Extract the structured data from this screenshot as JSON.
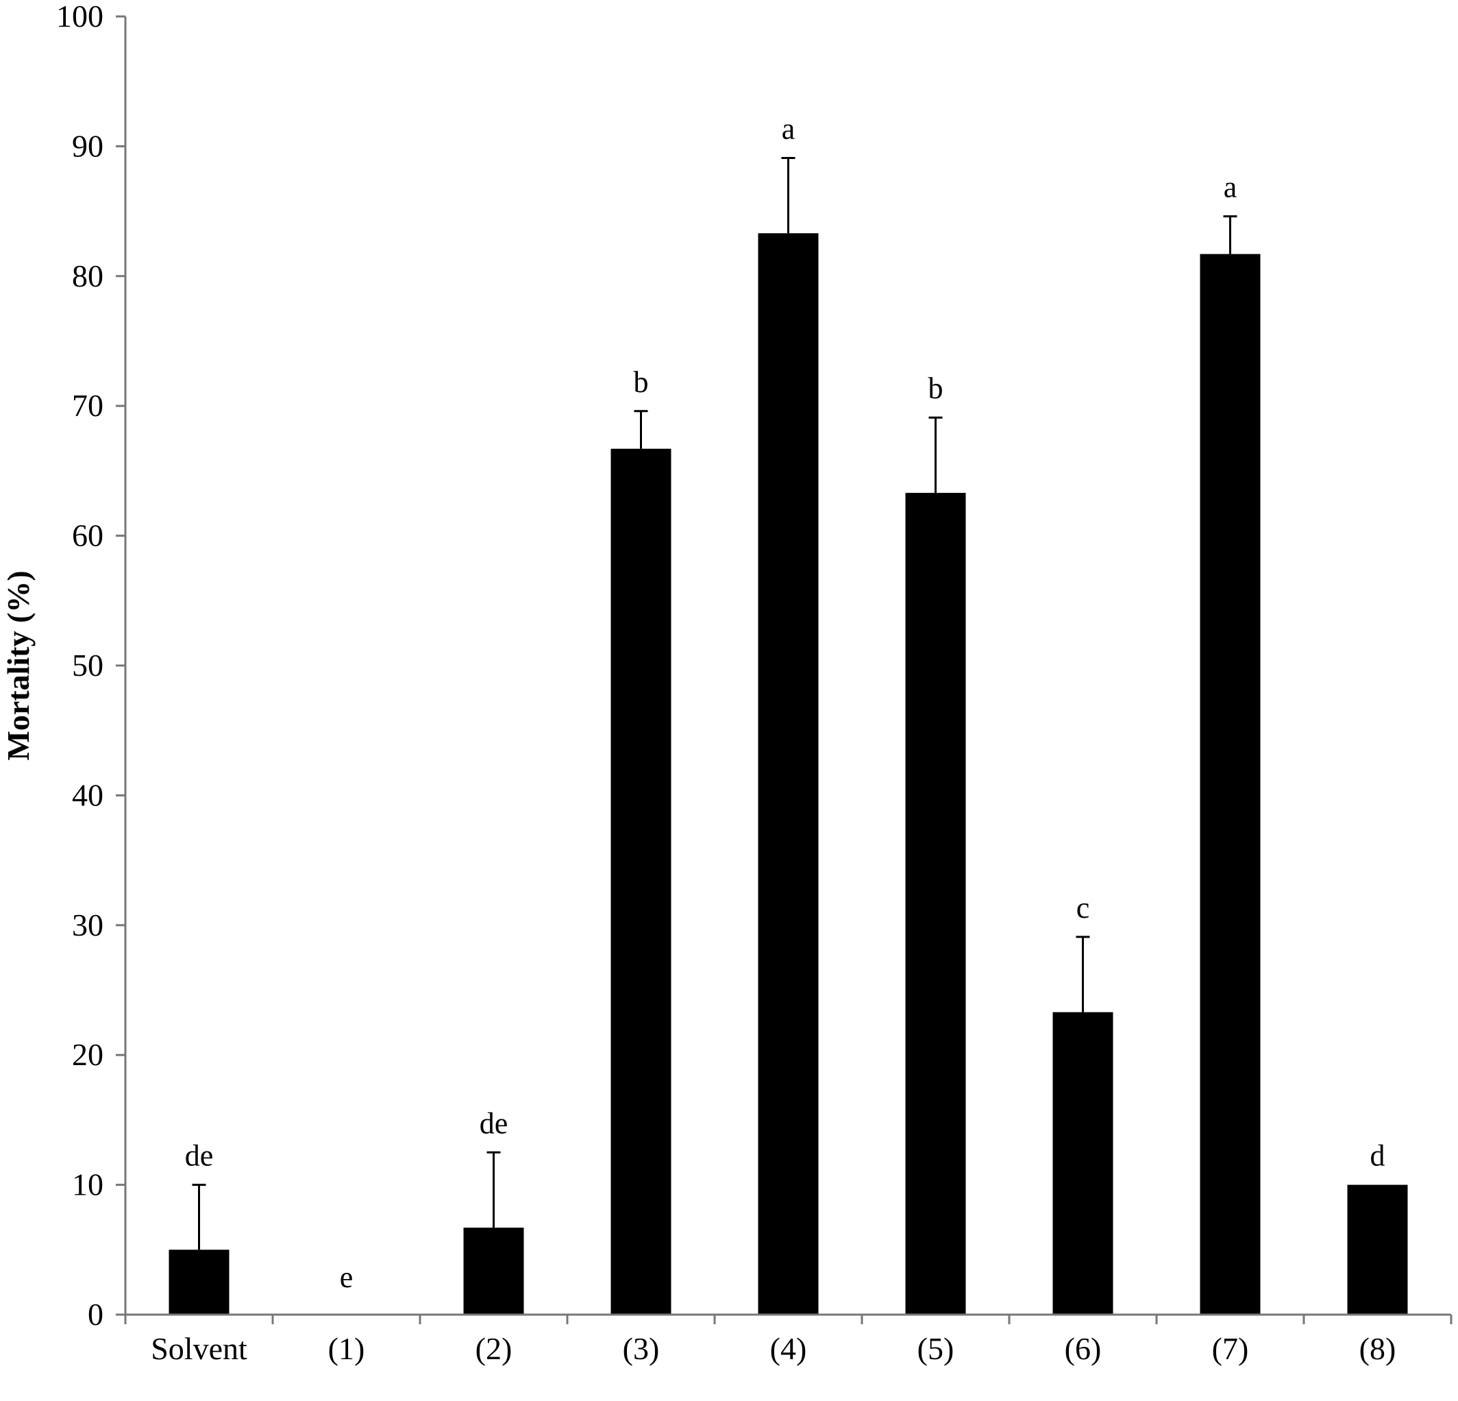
{
  "chart_data": {
    "type": "bar",
    "ylabel": "Mortality (%)",
    "xlabel": "",
    "ylim": [
      0,
      100
    ],
    "yticks": [
      0,
      10,
      20,
      30,
      40,
      50,
      60,
      70,
      80,
      90,
      100
    ],
    "grid": false,
    "legend": "none",
    "bar_color": "#000000",
    "categories": [
      "Solvent",
      "(1)",
      "(2)",
      "(3)",
      "(4)",
      "(5)",
      "(6)",
      "(7)",
      "(8)"
    ],
    "values": [
      5.0,
      0.0,
      6.7,
      66.7,
      83.3,
      63.3,
      23.3,
      81.7,
      10.0
    ],
    "errors": [
      5.0,
      0.0,
      5.8,
      2.9,
      5.8,
      5.8,
      5.8,
      2.9,
      0.0
    ],
    "significance_labels": [
      "de",
      "e",
      "de",
      "b",
      "a",
      "b",
      "c",
      "a",
      "d"
    ]
  }
}
